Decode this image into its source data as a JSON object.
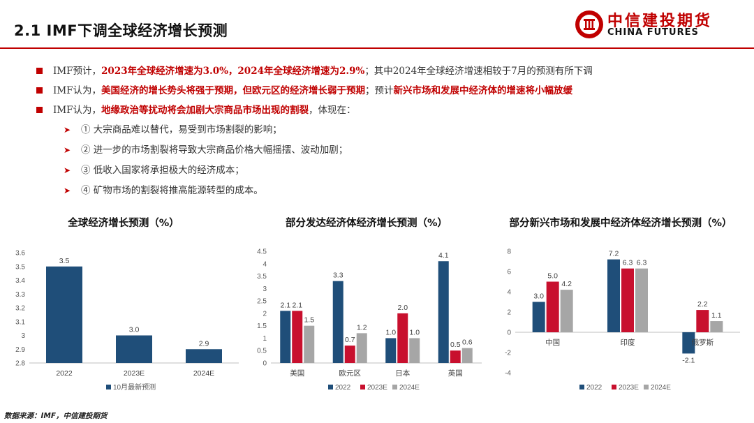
{
  "header": {
    "title": "2.1  IMF下调全球经济增长预测",
    "logo_cn": "中信建投期货",
    "logo_en": "CHINA FUTURES"
  },
  "bullets": [
    {
      "pre": "IMF预计，",
      "red": "2023年全球经济增速为3.0%，2024年全球经济增速为2.9%",
      "post": "；其中2024年全球经济增速相较于7月的预测有所下调"
    },
    {
      "pre": "IMF认为，",
      "red": "美国经济的增长势头将强于预期，但欧元区的经济增长弱于预期",
      "mid": "；预计",
      "red2": "新兴市场和发展中经济体的增速将小幅放缓"
    },
    {
      "pre": "IMF认为，",
      "red": "地缘政治等扰动将会加剧大宗商品市场出现的割裂",
      "post": "，体现在："
    }
  ],
  "sub_items": [
    "① 大宗商品难以替代，易受到市场割裂的影响；",
    "② 进一步的市场割裂将导致大宗商品价格大幅摇摆、波动加剧；",
    "③ 低收入国家将承担极大的经济成本；",
    "④ 矿物市场的割裂将推高能源转型的成本。"
  ],
  "colors": {
    "navy": "#1f4e79",
    "red": "#c8102e",
    "gray": "#a6a6a6",
    "accent": "#c00000"
  },
  "chart_data": [
    {
      "type": "bar",
      "title": "全球经济增长预测（%）",
      "categories": [
        "2022",
        "2023E",
        "2024E"
      ],
      "series": [
        {
          "name": "10月最新预测",
          "values": [
            3.5,
            3.0,
            2.9
          ],
          "data_labels": [
            "3.5",
            "3.0",
            "2.9"
          ]
        }
      ],
      "ylim": [
        2.8,
        3.6
      ],
      "yticks": [
        2.8,
        2.9,
        3.0,
        3.1,
        3.2,
        3.3,
        3.4,
        3.5,
        3.6
      ],
      "ytick_labels": [
        "2.8",
        "2.9",
        "3",
        "3.1",
        "3.2",
        "3.3",
        "3.4",
        "3.5",
        "3.6"
      ]
    },
    {
      "type": "bar",
      "title": "部分发达经济体经济增长预测（%）",
      "categories": [
        "美国",
        "欧元区",
        "日本",
        "英国"
      ],
      "series": [
        {
          "name": "2022",
          "values": [
            2.1,
            3.3,
            1.0,
            4.1
          ],
          "data_labels": [
            "2.1",
            "3.3",
            "1.0",
            "4.1"
          ]
        },
        {
          "name": "2023E",
          "values": [
            2.1,
            0.7,
            2.0,
            0.5
          ],
          "data_labels": [
            "2.1",
            "0.7",
            "2.0",
            "0.5"
          ]
        },
        {
          "name": "2024E",
          "values": [
            1.5,
            1.2,
            1.0,
            0.6
          ],
          "data_labels": [
            "1.5",
            "1.2",
            "1.0",
            "0.6"
          ]
        }
      ],
      "ylim": [
        0,
        4.5
      ],
      "yticks": [
        0,
        0.5,
        1,
        1.5,
        2,
        2.5,
        3,
        3.5,
        4,
        4.5
      ],
      "ytick_labels": [
        "0",
        "0.5",
        "1",
        "1.5",
        "2",
        "2.5",
        "3",
        "3.5",
        "4",
        "4.5"
      ]
    },
    {
      "type": "bar",
      "title": "部分新兴市场和发展中经济体经济增长预测（%）",
      "categories": [
        "中国",
        "印度",
        "俄罗斯"
      ],
      "series": [
        {
          "name": "2022",
          "values": [
            3.0,
            7.2,
            -2.1
          ],
          "data_labels": [
            "3.0",
            "7.2",
            "-2.1"
          ]
        },
        {
          "name": "2023E",
          "values": [
            5.0,
            6.3,
            2.2
          ],
          "data_labels": [
            "5.0",
            "6.3",
            "2.2"
          ]
        },
        {
          "name": "2024E",
          "values": [
            4.2,
            6.3,
            1.1
          ],
          "data_labels": [
            "4.2",
            "6.3",
            "1.1"
          ]
        }
      ],
      "ylim": [
        -4,
        8
      ],
      "yticks": [
        -4,
        -2,
        0,
        2,
        4,
        6,
        8
      ],
      "ytick_labels": [
        "-4",
        "-2",
        "0",
        "2",
        "4",
        "6",
        "8"
      ]
    }
  ],
  "footer": {
    "source": "数据来源：IMF，中信建投期货"
  }
}
